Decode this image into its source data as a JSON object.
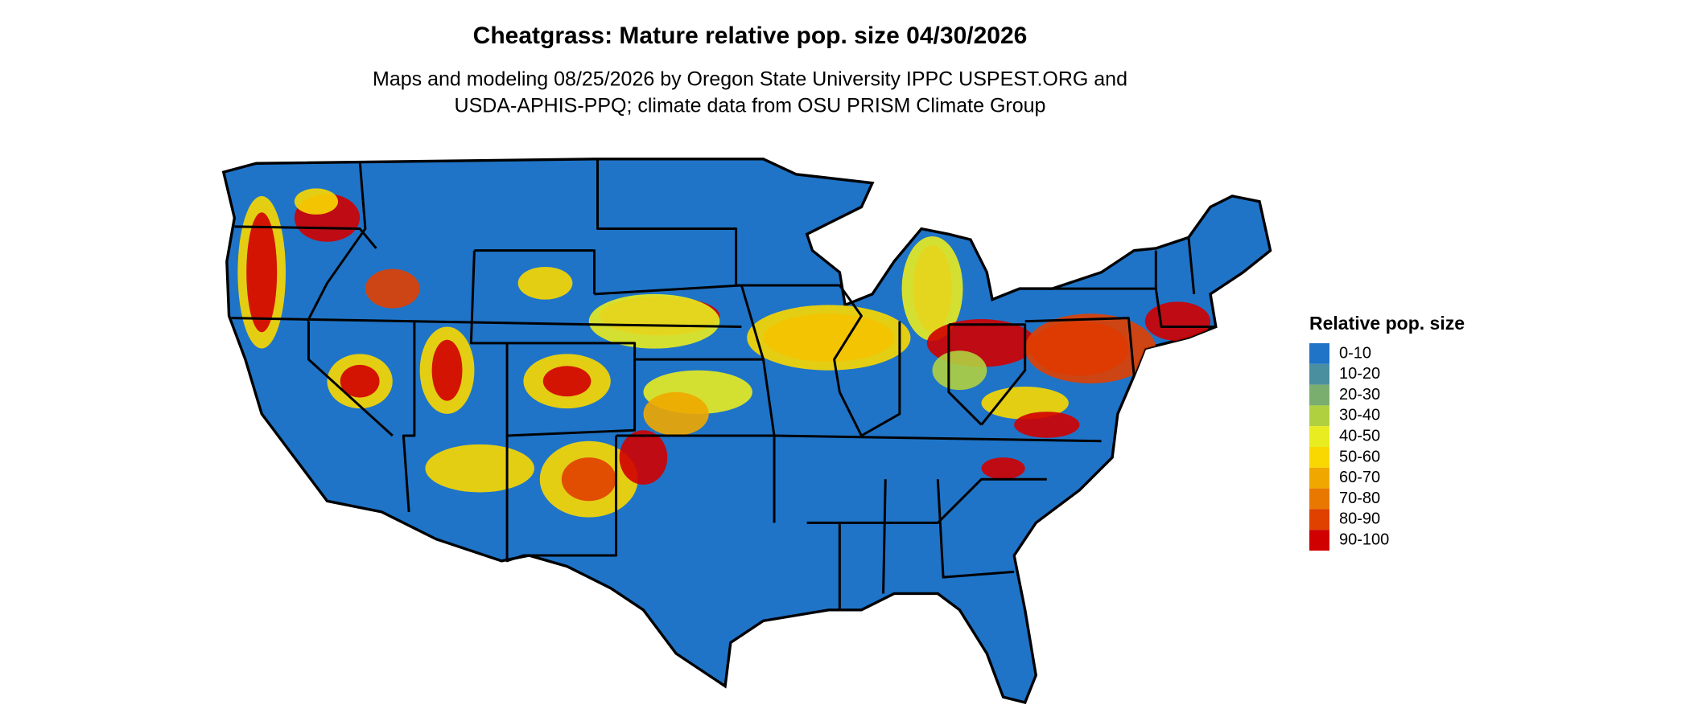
{
  "map": {
    "title": "Cheatgrass: Mature relative pop. size 04/30/2026",
    "subtitle": [
      "Maps and modeling 08/25/2026 by Oregon State University IPPC USPEST.ORG and",
      "USDA-APHIS-PPQ; climate data from OSU PRISM Climate Group"
    ],
    "legend": {
      "title": "Relative pop. size",
      "items": [
        {
          "label": "0-10",
          "color": "#1f74c8"
        },
        {
          "label": "10-20",
          "color": "#4a8fa0"
        },
        {
          "label": "20-30",
          "color": "#7aae6e"
        },
        {
          "label": "30-40",
          "color": "#b0d040"
        },
        {
          "label": "40-50",
          "color": "#e8ec20"
        },
        {
          "label": "50-60",
          "color": "#f8d800"
        },
        {
          "label": "60-70",
          "color": "#f0a800"
        },
        {
          "label": "70-80",
          "color": "#e87800"
        },
        {
          "label": "80-90",
          "color": "#e04000"
        },
        {
          "label": "90-100",
          "color": "#d00000"
        }
      ]
    }
  }
}
